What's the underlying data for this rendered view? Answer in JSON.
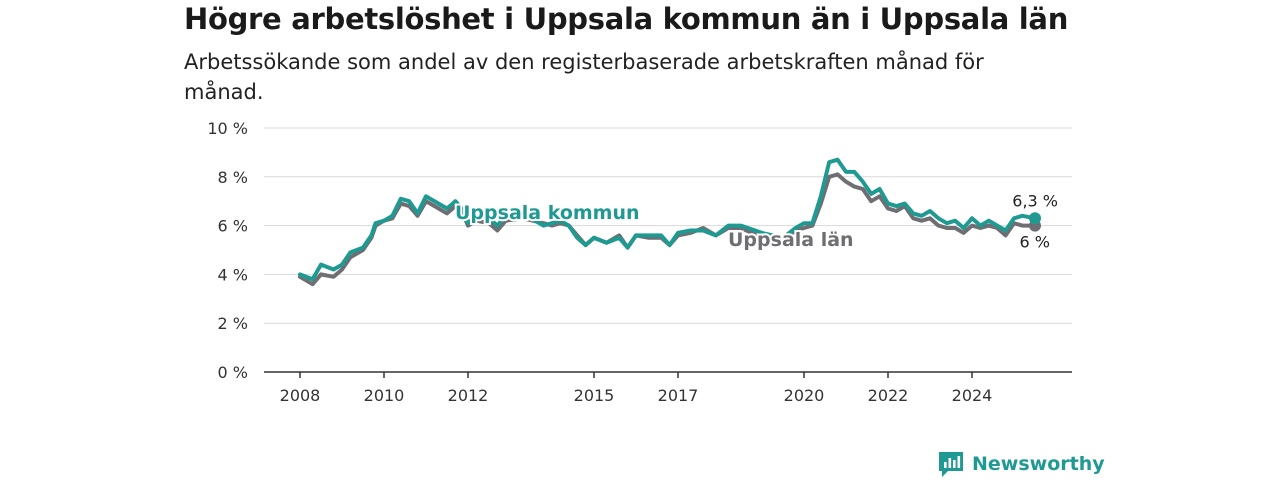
{
  "header": {
    "title": "Högre arbetslöshet i Uppsala kommun än i Uppsala län",
    "subtitle": "Arbetssökande som andel av den registerbaserade arbetskraften månad för månad."
  },
  "brand": {
    "name": "Newsworthy",
    "icon": "newsworthy-logo-icon",
    "color": "#1f9a92"
  },
  "chart_data": {
    "type": "line",
    "title": "Högre arbetslöshet i Uppsala kommun än i Uppsala län",
    "subtitle": "Arbetssökande som andel av den registerbaserade arbetskraften månad för månad.",
    "xlabel": "",
    "ylabel": "",
    "xlim": [
      2008.0,
      2025.5
    ],
    "ylim": [
      0,
      10
    ],
    "x_ticks": [
      2008,
      2010,
      2012,
      2015,
      2017,
      2020,
      2022,
      2024
    ],
    "x_tick_labels": [
      "2008",
      "2010",
      "2012",
      "2015",
      "2017",
      "2020",
      "2022",
      "2024"
    ],
    "y_ticks": [
      0,
      2,
      4,
      6,
      8,
      10
    ],
    "y_tick_labels": [
      "0 %",
      "2 %",
      "4 %",
      "6 %",
      "8 %",
      "10 %"
    ],
    "grid": true,
    "series": [
      {
        "name": "Uppsala län",
        "color": "#6e6e73",
        "end_label": "6 %",
        "points": [
          [
            2008.0,
            3.9
          ],
          [
            2008.3,
            3.6
          ],
          [
            2008.5,
            4.0
          ],
          [
            2008.8,
            3.9
          ],
          [
            2009.0,
            4.2
          ],
          [
            2009.2,
            4.7
          ],
          [
            2009.5,
            5.0
          ],
          [
            2009.7,
            5.5
          ],
          [
            2009.8,
            6.0
          ],
          [
            2010.0,
            6.2
          ],
          [
            2010.2,
            6.3
          ],
          [
            2010.4,
            6.9
          ],
          [
            2010.6,
            6.8
          ],
          [
            2010.8,
            6.4
          ],
          [
            2011.0,
            7.0
          ],
          [
            2011.3,
            6.7
          ],
          [
            2011.5,
            6.5
          ],
          [
            2011.7,
            6.8
          ],
          [
            2011.9,
            6.4
          ],
          [
            2012.0,
            6.0
          ],
          [
            2012.2,
            6.2
          ],
          [
            2012.5,
            6.1
          ],
          [
            2012.7,
            5.8
          ],
          [
            2012.9,
            6.2
          ],
          [
            2013.3,
            6.3
          ],
          [
            2013.8,
            6.1
          ],
          [
            2014.0,
            6.0
          ],
          [
            2014.2,
            6.1
          ],
          [
            2014.4,
            6.0
          ],
          [
            2014.6,
            5.6
          ],
          [
            2014.8,
            5.2
          ],
          [
            2015.0,
            5.5
          ],
          [
            2015.3,
            5.3
          ],
          [
            2015.6,
            5.6
          ],
          [
            2015.8,
            5.1
          ],
          [
            2016.0,
            5.6
          ],
          [
            2016.3,
            5.5
          ],
          [
            2016.6,
            5.5
          ],
          [
            2016.8,
            5.2
          ],
          [
            2017.0,
            5.6
          ],
          [
            2017.3,
            5.7
          ],
          [
            2017.6,
            5.9
          ],
          [
            2017.9,
            5.6
          ],
          [
            2018.2,
            5.9
          ],
          [
            2018.5,
            5.9
          ],
          [
            2019.0,
            5.5
          ],
          [
            2019.5,
            5.4
          ],
          [
            2019.8,
            5.8
          ],
          [
            2020.0,
            5.9
          ],
          [
            2020.2,
            6.0
          ],
          [
            2020.4,
            6.9
          ],
          [
            2020.6,
            8.0
          ],
          [
            2020.8,
            8.1
          ],
          [
            2021.0,
            7.8
          ],
          [
            2021.2,
            7.6
          ],
          [
            2021.4,
            7.5
          ],
          [
            2021.6,
            7.0
          ],
          [
            2021.8,
            7.2
          ],
          [
            2022.0,
            6.7
          ],
          [
            2022.2,
            6.6
          ],
          [
            2022.4,
            6.8
          ],
          [
            2022.6,
            6.3
          ],
          [
            2022.8,
            6.2
          ],
          [
            2023.0,
            6.3
          ],
          [
            2023.2,
            6.0
          ],
          [
            2023.4,
            5.9
          ],
          [
            2023.6,
            5.9
          ],
          [
            2023.8,
            5.7
          ],
          [
            2024.0,
            6.0
          ],
          [
            2024.2,
            5.9
          ],
          [
            2024.4,
            6.0
          ],
          [
            2024.6,
            5.9
          ],
          [
            2024.8,
            5.6
          ],
          [
            2025.0,
            6.1
          ],
          [
            2025.2,
            6.0
          ],
          [
            2025.5,
            6.0
          ]
        ]
      },
      {
        "name": "Uppsala kommun",
        "color": "#1f9a92",
        "end_label": "6,3 %",
        "points": [
          [
            2008.0,
            4.0
          ],
          [
            2008.3,
            3.8
          ],
          [
            2008.5,
            4.4
          ],
          [
            2008.8,
            4.2
          ],
          [
            2009.0,
            4.4
          ],
          [
            2009.2,
            4.9
          ],
          [
            2009.5,
            5.1
          ],
          [
            2009.7,
            5.6
          ],
          [
            2009.8,
            6.1
          ],
          [
            2010.0,
            6.2
          ],
          [
            2010.2,
            6.4
          ],
          [
            2010.4,
            7.1
          ],
          [
            2010.6,
            7.0
          ],
          [
            2010.8,
            6.5
          ],
          [
            2011.0,
            7.2
          ],
          [
            2011.3,
            6.9
          ],
          [
            2011.5,
            6.7
          ],
          [
            2011.7,
            7.0
          ],
          [
            2011.9,
            6.6
          ],
          [
            2012.0,
            6.1
          ],
          [
            2012.2,
            6.4
          ],
          [
            2012.5,
            6.3
          ],
          [
            2012.7,
            6.0
          ],
          [
            2012.9,
            6.4
          ],
          [
            2013.3,
            6.5
          ],
          [
            2013.8,
            6.0
          ],
          [
            2014.0,
            6.1
          ],
          [
            2014.2,
            6.2
          ],
          [
            2014.4,
            6.0
          ],
          [
            2014.6,
            5.5
          ],
          [
            2014.8,
            5.2
          ],
          [
            2015.0,
            5.5
          ],
          [
            2015.3,
            5.3
          ],
          [
            2015.6,
            5.5
          ],
          [
            2015.8,
            5.1
          ],
          [
            2016.0,
            5.6
          ],
          [
            2016.3,
            5.6
          ],
          [
            2016.6,
            5.6
          ],
          [
            2016.8,
            5.2
          ],
          [
            2017.0,
            5.7
          ],
          [
            2017.3,
            5.8
          ],
          [
            2017.6,
            5.8
          ],
          [
            2017.9,
            5.6
          ],
          [
            2018.2,
            6.0
          ],
          [
            2018.5,
            6.0
          ],
          [
            2019.0,
            5.7
          ],
          [
            2019.5,
            5.5
          ],
          [
            2019.8,
            5.9
          ],
          [
            2020.0,
            6.1
          ],
          [
            2020.2,
            6.1
          ],
          [
            2020.4,
            7.2
          ],
          [
            2020.6,
            8.6
          ],
          [
            2020.8,
            8.7
          ],
          [
            2021.0,
            8.2
          ],
          [
            2021.2,
            8.2
          ],
          [
            2021.4,
            7.8
          ],
          [
            2021.6,
            7.3
          ],
          [
            2021.8,
            7.5
          ],
          [
            2022.0,
            6.9
          ],
          [
            2022.2,
            6.8
          ],
          [
            2022.4,
            6.9
          ],
          [
            2022.6,
            6.5
          ],
          [
            2022.8,
            6.4
          ],
          [
            2023.0,
            6.6
          ],
          [
            2023.2,
            6.3
          ],
          [
            2023.4,
            6.1
          ],
          [
            2023.6,
            6.2
          ],
          [
            2023.8,
            5.9
          ],
          [
            2024.0,
            6.3
          ],
          [
            2024.2,
            6.0
          ],
          [
            2024.4,
            6.2
          ],
          [
            2024.6,
            6.0
          ],
          [
            2024.8,
            5.8
          ],
          [
            2025.0,
            6.3
          ],
          [
            2025.2,
            6.4
          ],
          [
            2025.5,
            6.3
          ]
        ]
      }
    ],
    "legend": "inline"
  }
}
